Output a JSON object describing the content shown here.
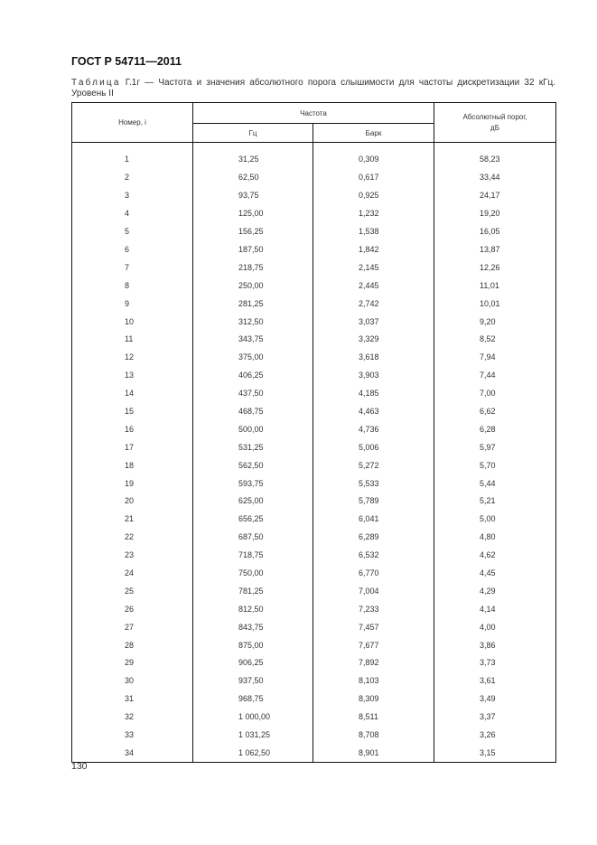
{
  "document": {
    "id": "ГОСТ Р 54711—2011",
    "caption_label": "Таблица",
    "caption_text": " Г.1г — Частота и значения абсолютного порога слышимости для частоты дискретизации 32 кГц. Уровень II",
    "page_number": "130"
  },
  "table": {
    "headers": {
      "number": "Номер, i",
      "frequency": "Частота",
      "hz": "Гц",
      "bark": "Барк",
      "threshold": "Абсолютный порог, дБ"
    },
    "rows": [
      [
        "1",
        "31,25",
        "0,309",
        "58,23"
      ],
      [
        "2",
        "62,50",
        "0,617",
        "33,44"
      ],
      [
        "3",
        "93,75",
        "0,925",
        "24,17"
      ],
      [
        "4",
        "125,00",
        "1,232",
        "19,20"
      ],
      [
        "5",
        "156,25",
        "1,538",
        "16,05"
      ],
      [
        "6",
        "187,50",
        "1,842",
        "13,87"
      ],
      [
        "7",
        "218,75",
        "2,145",
        "12,26"
      ],
      [
        "8",
        "250,00",
        "2,445",
        "11,01"
      ],
      [
        "9",
        "281,25",
        "2,742",
        "10,01"
      ],
      [
        "10",
        "312,50",
        "3,037",
        "9,20"
      ],
      [
        "11",
        "343,75",
        "3,329",
        "8,52"
      ],
      [
        "12",
        "375,00",
        "3,618",
        "7,94"
      ],
      [
        "13",
        "406,25",
        "3,903",
        "7,44"
      ],
      [
        "14",
        "437,50",
        "4,185",
        "7,00"
      ],
      [
        "15",
        "468,75",
        "4,463",
        "6,62"
      ],
      [
        "16",
        "500,00",
        "4,736",
        "6,28"
      ],
      [
        "17",
        "531,25",
        "5,006",
        "5,97"
      ],
      [
        "18",
        "562,50",
        "5,272",
        "5,70"
      ],
      [
        "19",
        "593,75",
        "5,533",
        "5,44"
      ],
      [
        "20",
        "625,00",
        "5,789",
        "5,21"
      ],
      [
        "21",
        "656,25",
        "6,041",
        "5,00"
      ],
      [
        "22",
        "687,50",
        "6,289",
        "4,80"
      ],
      [
        "23",
        "718,75",
        "6,532",
        "4,62"
      ],
      [
        "24",
        "750,00",
        "6,770",
        "4,45"
      ],
      [
        "25",
        "781,25",
        "7,004",
        "4,29"
      ],
      [
        "26",
        "812,50",
        "7,233",
        "4,14"
      ],
      [
        "27",
        "843,75",
        "7,457",
        "4,00"
      ],
      [
        "28",
        "875,00",
        "7,677",
        "3,86"
      ],
      [
        "29",
        "906,25",
        "7,892",
        "3,73"
      ],
      [
        "30",
        "937,50",
        "8,103",
        "3,61"
      ],
      [
        "31",
        "968,75",
        "8,309",
        "3,49"
      ],
      [
        "32",
        "1 000,00",
        "8,511",
        "3,37"
      ],
      [
        "33",
        "1 031,25",
        "8,708",
        "3,26"
      ],
      [
        "34",
        "1 062,50",
        "8,901",
        "3,15"
      ]
    ]
  }
}
